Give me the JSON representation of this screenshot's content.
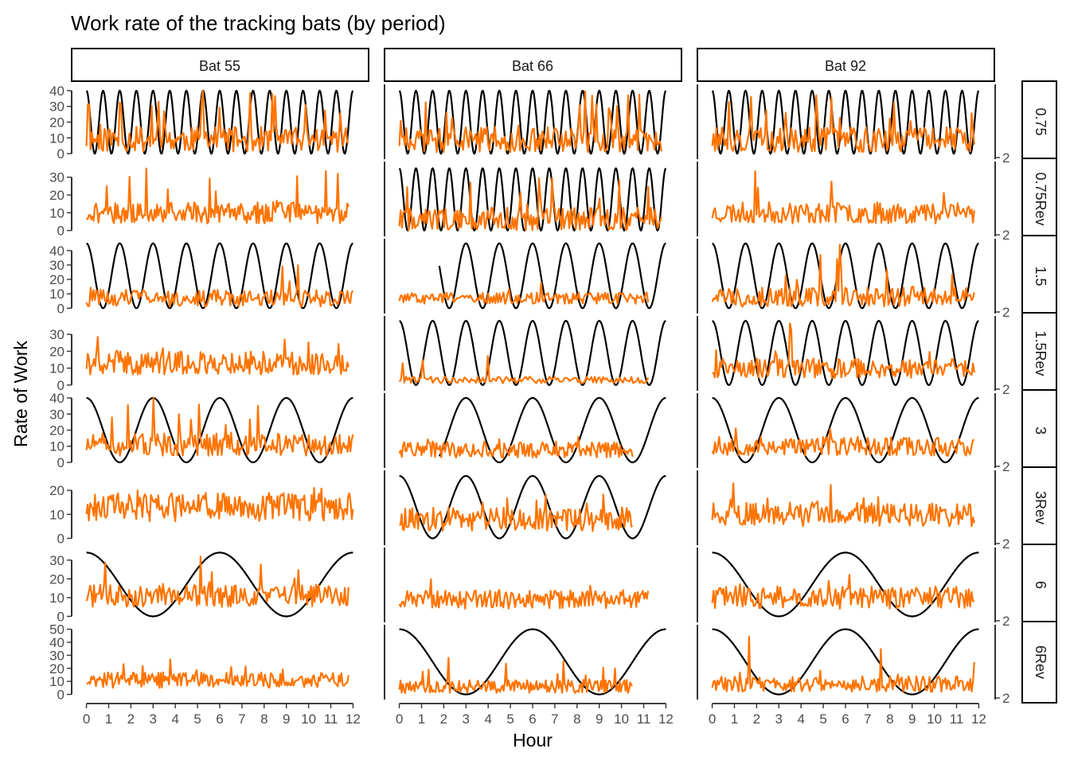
{
  "title": "Work rate of the tracking bats (by period)",
  "xlabel": "Hour",
  "ylabel": "Rate of Work",
  "chart_data": {
    "type": "line",
    "facet_columns": [
      "Bat 55",
      "Bat 66",
      "Bat 92"
    ],
    "facet_rows": [
      "0.75",
      "0.75Rev",
      "1.5",
      "1.5Rev",
      "3",
      "3Rev",
      "6",
      "6Rev"
    ],
    "right_axis_tick": "2",
    "x_ticks": [
      0,
      1,
      2,
      3,
      4,
      5,
      6,
      7,
      8,
      9,
      10,
      11,
      12
    ],
    "xlim": [
      -0.2,
      12.2
    ],
    "colors": {
      "work_rate": "#ff7400",
      "reference_cosine": "#000000"
    },
    "rows": [
      {
        "ylim": [
          -1.5,
          42
        ],
        "yticks": [
          0,
          10,
          20,
          30,
          40
        ],
        "period": 0.75
      },
      {
        "ylim": [
          -1.5,
          37
        ],
        "yticks": [
          0,
          10,
          20,
          30
        ],
        "period": 0.75
      },
      {
        "ylim": [
          -1.5,
          46
        ],
        "yticks": [
          0,
          10,
          20,
          30,
          40
        ],
        "period": 1.5
      },
      {
        "ylim": [
          -1.5,
          39
        ],
        "yticks": [
          0,
          10,
          20,
          30
        ],
        "period": 1.5
      },
      {
        "ylim": [
          -1.5,
          41
        ],
        "yticks": [
          0,
          10,
          20,
          30,
          40
        ],
        "period": 3
      },
      {
        "ylim": [
          -1.5,
          27
        ],
        "yticks": [
          0,
          10,
          20
        ],
        "period": 3
      },
      {
        "ylim": [
          -1.5,
          35
        ],
        "yticks": [
          0,
          10,
          20,
          30
        ],
        "period": 6
      },
      {
        "ylim": [
          -1.5,
          51
        ],
        "yticks": [
          0,
          10,
          20,
          30,
          40,
          50
        ],
        "period": 6
      }
    ],
    "panels": [
      [
        {
          "curve": {
            "amp": 40,
            "phase": 0,
            "x0": 0,
            "x1": 12
          },
          "work": {
            "x0": 0,
            "x1": 11.8,
            "n": 190,
            "base": 9,
            "noise": 8,
            "spike": 0.12,
            "spikeMax": 40,
            "seed": 11
          }
        },
        {
          "curve": {
            "amp": 40,
            "phase": 0,
            "x0": 0,
            "x1": 12
          },
          "work": {
            "x0": 0,
            "x1": 11.8,
            "n": 190,
            "base": 9,
            "noise": 8,
            "spike": 0.12,
            "spikeMax": 40,
            "seed": 12
          }
        },
        {
          "curve": {
            "amp": 40,
            "phase": 0,
            "x0": 0,
            "x1": 12
          },
          "work": {
            "x0": 0,
            "x1": 11.8,
            "n": 190,
            "base": 9,
            "noise": 8,
            "spike": 0.12,
            "spikeMax": 40,
            "seed": 13
          }
        }
      ],
      [
        {
          "curve": null,
          "work": {
            "x0": 0,
            "x1": 11.8,
            "n": 220,
            "base": 10,
            "noise": 6,
            "spike": 0.05,
            "spikeMax": 35,
            "seed": 21
          }
        },
        {
          "curve": {
            "amp": 35,
            "phase": 0,
            "x0": 0,
            "x1": 12
          },
          "work": {
            "x0": 0,
            "x1": 11.8,
            "n": 200,
            "base": 6,
            "noise": 7,
            "spike": 0.05,
            "spikeMax": 30,
            "seed": 22
          }
        },
        {
          "curve": null,
          "work": {
            "x0": 0,
            "x1": 11.8,
            "n": 190,
            "base": 10,
            "noise": 6,
            "spike": 0.03,
            "spikeMax": 35,
            "seed": 23
          }
        }
      ],
      [
        {
          "curve": {
            "amp": 45,
            "phase": 0,
            "x0": 0,
            "x1": 12
          },
          "work": {
            "x0": 0,
            "x1": 12,
            "n": 190,
            "base": 7,
            "noise": 6,
            "spike": 0.07,
            "spikeMax": 33,
            "seed": 31
          }
        },
        {
          "curve": {
            "amp": 45,
            "phase": 0,
            "x0": 1.8,
            "x1": 12
          },
          "work": {
            "x0": 0,
            "x1": 11.2,
            "n": 180,
            "base": 7,
            "noise": 4,
            "spike": 0.02,
            "spikeMax": 20,
            "seed": 32
          }
        },
        {
          "curve": {
            "amp": 45,
            "phase": 0,
            "x0": 0,
            "x1": 12
          },
          "work": {
            "x0": 0,
            "x1": 11.8,
            "n": 190,
            "base": 8,
            "noise": 7,
            "spike": 0.07,
            "spikeMax": 45,
            "seed": 33
          }
        }
      ],
      [
        {
          "curve": null,
          "work": {
            "x0": 0,
            "x1": 11.8,
            "n": 210,
            "base": 13,
            "noise": 7,
            "spike": 0.05,
            "spikeMax": 31,
            "seed": 41
          }
        },
        {
          "curve": {
            "amp": 38,
            "phase": 0,
            "x0": 0,
            "x1": 12
          },
          "work": {
            "x0": 0,
            "x1": 11.2,
            "n": 150,
            "base": 3,
            "noise": 2,
            "spike": 0.03,
            "spikeMax": 25,
            "seed": 42
          }
        },
        {
          "curve": {
            "amp": 38,
            "phase": 0,
            "x0": 0,
            "x1": 12
          },
          "work": {
            "x0": 0,
            "x1": 11.8,
            "n": 200,
            "base": 10,
            "noise": 6,
            "spike": 0.05,
            "spikeMax": 38,
            "seed": 43
          }
        }
      ],
      [
        {
          "curve": {
            "amp": 40,
            "phase": 0,
            "x0": 0,
            "x1": 12
          },
          "work": {
            "x0": 0,
            "x1": 12,
            "n": 200,
            "base": 11,
            "noise": 7,
            "spike": 0.06,
            "spikeMax": 40,
            "seed": 51
          }
        },
        {
          "curve": {
            "amp": 40,
            "phase": 0,
            "x0": 1.8,
            "x1": 12
          },
          "work": {
            "x0": 0,
            "x1": 10.5,
            "n": 190,
            "base": 8,
            "noise": 5,
            "spike": 0.03,
            "spikeMax": 16,
            "seed": 52
          }
        },
        {
          "curve": {
            "amp": 40,
            "phase": 0,
            "x0": 0,
            "x1": 12
          },
          "work": {
            "x0": 0,
            "x1": 11.8,
            "n": 190,
            "base": 10,
            "noise": 6,
            "spike": 0.04,
            "spikeMax": 25,
            "seed": 53
          }
        }
      ],
      [
        {
          "curve": null,
          "work": {
            "x0": 0,
            "x1": 12,
            "n": 220,
            "base": 13,
            "noise": 6,
            "spike": 0.04,
            "spikeMax": 25,
            "seed": 61
          }
        },
        {
          "curve": {
            "amp": 26,
            "phase": 0,
            "x0": 0,
            "x1": 12
          },
          "work": {
            "x0": 0,
            "x1": 10.5,
            "n": 200,
            "base": 8,
            "noise": 5,
            "spike": 0.03,
            "spikeMax": 20,
            "seed": 62
          }
        },
        {
          "curve": null,
          "work": {
            "x0": 0,
            "x1": 11.8,
            "n": 200,
            "base": 10,
            "noise": 5,
            "spike": 0.03,
            "spikeMax": 27,
            "seed": 63
          }
        }
      ],
      [
        {
          "curve": {
            "amp": 34,
            "phase": 0,
            "x0": 0,
            "x1": 12
          },
          "work": {
            "x0": 0,
            "x1": 11.8,
            "n": 210,
            "base": 11,
            "noise": 6,
            "spike": 0.04,
            "spikeMax": 34,
            "seed": 71
          }
        },
        {
          "curve": null,
          "work": {
            "x0": 0,
            "x1": 11.2,
            "n": 190,
            "base": 9,
            "noise": 5,
            "spike": 0.03,
            "spikeMax": 20,
            "seed": 72
          }
        },
        {
          "curve": {
            "amp": 34,
            "phase": 0,
            "x0": 0,
            "x1": 12
          },
          "work": {
            "x0": 0,
            "x1": 11.8,
            "n": 190,
            "base": 10,
            "noise": 6,
            "spike": 0.04,
            "spikeMax": 26,
            "seed": 73
          }
        }
      ],
      [
        {
          "curve": null,
          "work": {
            "x0": 0,
            "x1": 11.8,
            "n": 220,
            "base": 11,
            "noise": 6,
            "spike": 0.05,
            "spikeMax": 27,
            "seed": 81
          }
        },
        {
          "curve": {
            "amp": 50,
            "phase": 0,
            "x0": 0,
            "x1": 12
          },
          "work": {
            "x0": 0,
            "x1": 10.5,
            "n": 200,
            "base": 6,
            "noise": 5,
            "spike": 0.04,
            "spikeMax": 30,
            "seed": 82
          }
        },
        {
          "curve": {
            "amp": 50,
            "phase": 0,
            "x0": 0,
            "x1": 12
          },
          "work": {
            "x0": 0,
            "x1": 11.8,
            "n": 200,
            "base": 8,
            "noise": 6,
            "spike": 0.05,
            "spikeMax": 50,
            "seed": 83
          }
        }
      ]
    ]
  }
}
